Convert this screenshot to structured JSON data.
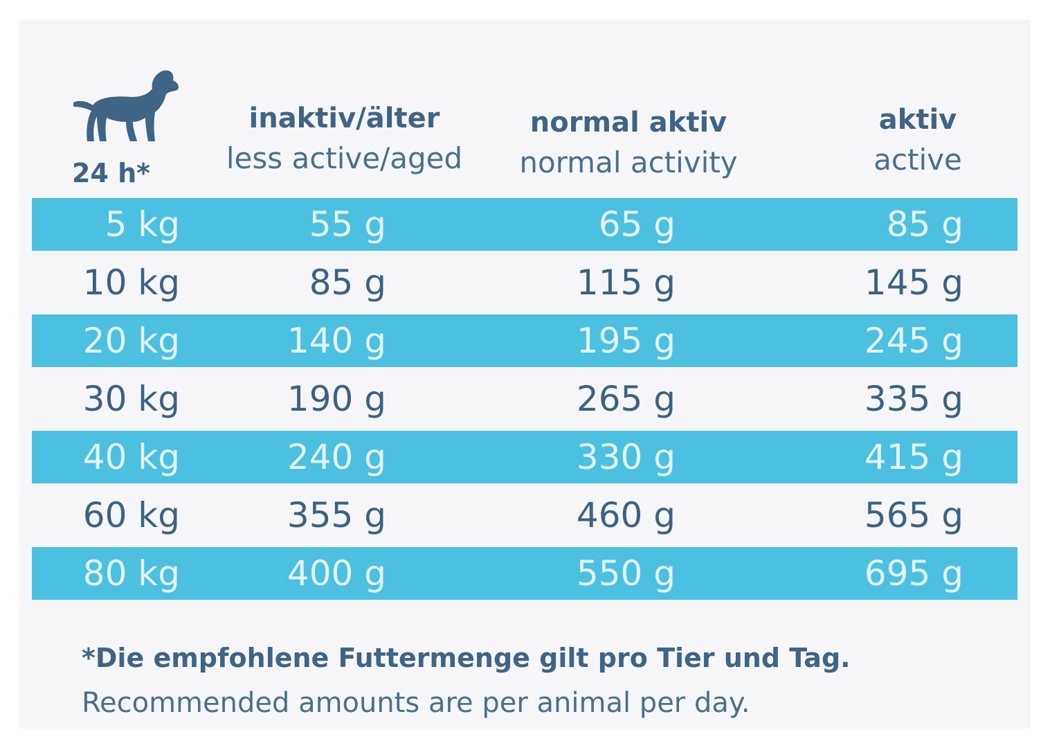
{
  "header": {
    "corner_label": "24 h*",
    "columns": [
      {
        "de": "inaktiv/älter",
        "en": "less active/aged"
      },
      {
        "de": "normal aktiv",
        "en": "normal activity"
      },
      {
        "de": "aktiv",
        "en": "active"
      }
    ]
  },
  "rows": [
    {
      "weight": "5 kg",
      "inactive": "55 g",
      "normal": "65 g",
      "active": "85 g",
      "highlighted": true
    },
    {
      "weight": "10 kg",
      "inactive": "85 g",
      "normal": "115 g",
      "active": "145 g",
      "highlighted": false
    },
    {
      "weight": "20 kg",
      "inactive": "140 g",
      "normal": "195 g",
      "active": "245 g",
      "highlighted": true
    },
    {
      "weight": "30 kg",
      "inactive": "190 g",
      "normal": "265 g",
      "active": "335 g",
      "highlighted": false
    },
    {
      "weight": "40 kg",
      "inactive": "240 g",
      "normal": "330 g",
      "active": "415 g",
      "highlighted": true
    },
    {
      "weight": "60 kg",
      "inactive": "355 g",
      "normal": "460 g",
      "active": "565 g",
      "highlighted": false
    },
    {
      "weight": "80 kg",
      "inactive": "400 g",
      "normal": "550 g",
      "active": "695 g",
      "highlighted": true
    }
  ],
  "footnote": {
    "de": "*Die empfohlene Futtermenge gilt pro Tier und Tag.",
    "en": "Recommended amounts are per animal per day."
  },
  "colors": {
    "text": "#3b6283",
    "band": "#4bc0e0",
    "band_text": "#e4f4fa",
    "background": "#f6f6f9"
  },
  "icons": {
    "dog": "dog-icon"
  }
}
